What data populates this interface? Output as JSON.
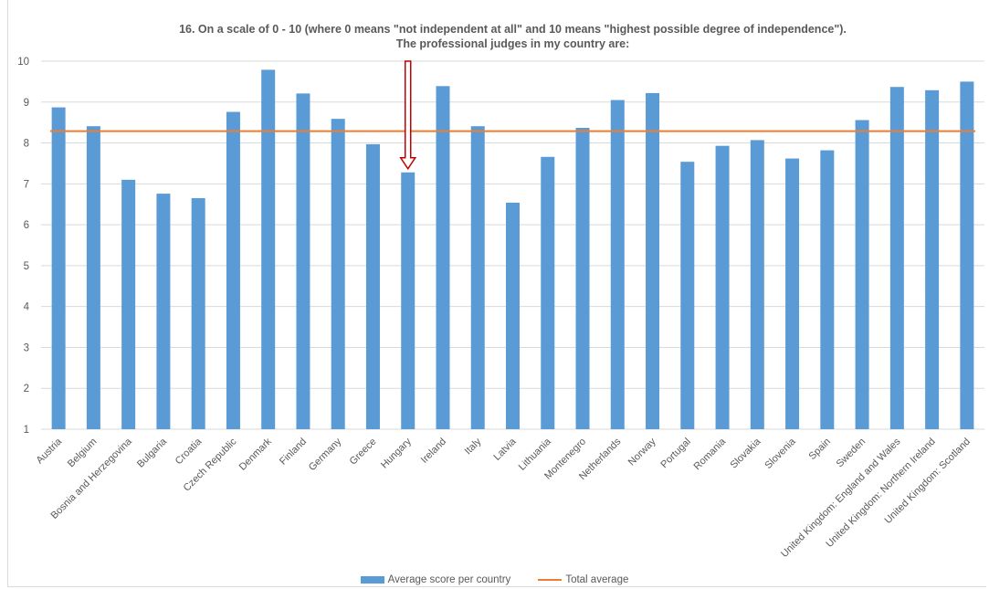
{
  "chart_data": {
    "type": "bar",
    "title_lines": [
      "16. On a scale of 0 - 10 (where 0 means \"not independent at all\" and 10 means \"highest possible degree of independence\").",
      "The professional judges in my country are:"
    ],
    "categories": [
      "Austria",
      "Belgium",
      "Bosnia and Herzegovina",
      "Bulgaria",
      "Croatia",
      "Czech Republic",
      "Denmark",
      "Finland",
      "Germany",
      "Greece",
      "Hungary",
      "Ireland",
      "Italy",
      "Latvia",
      "Lithuania",
      "Montenegro",
      "Netherlands",
      "Norway",
      "Portugal",
      "Romania",
      "Slovakia",
      "Slovenia",
      "Spain",
      "Sweden",
      "United Kingdom: England and Wales",
      "United Kingdom: Northern Ireland",
      "United Kingdom: Scotland"
    ],
    "series": [
      {
        "name": "Average score per country",
        "type": "bar",
        "values": [
          8.87,
          8.41,
          7.1,
          6.76,
          6.65,
          8.76,
          9.79,
          9.21,
          8.59,
          7.97,
          7.28,
          9.39,
          8.41,
          6.54,
          7.66,
          8.37,
          9.05,
          9.22,
          7.54,
          7.93,
          8.07,
          7.62,
          7.82,
          8.56,
          9.37,
          9.29,
          9.5
        ]
      },
      {
        "name": "Total average",
        "type": "line",
        "value": 8.29
      }
    ],
    "yticks": [
      "1",
      "2",
      "3",
      "4",
      "5",
      "6",
      "7",
      "8",
      "9",
      "10"
    ],
    "ylim": [
      1,
      10
    ],
    "grid": true,
    "legend": "bottom",
    "highlight_category": "Hungary",
    "colors": {
      "bar": "#5b9bd5",
      "line": "#ed7d31",
      "arrow": "#c00000"
    }
  },
  "legend": {
    "bar_label": "Average score per country",
    "line_label": "Total average"
  }
}
